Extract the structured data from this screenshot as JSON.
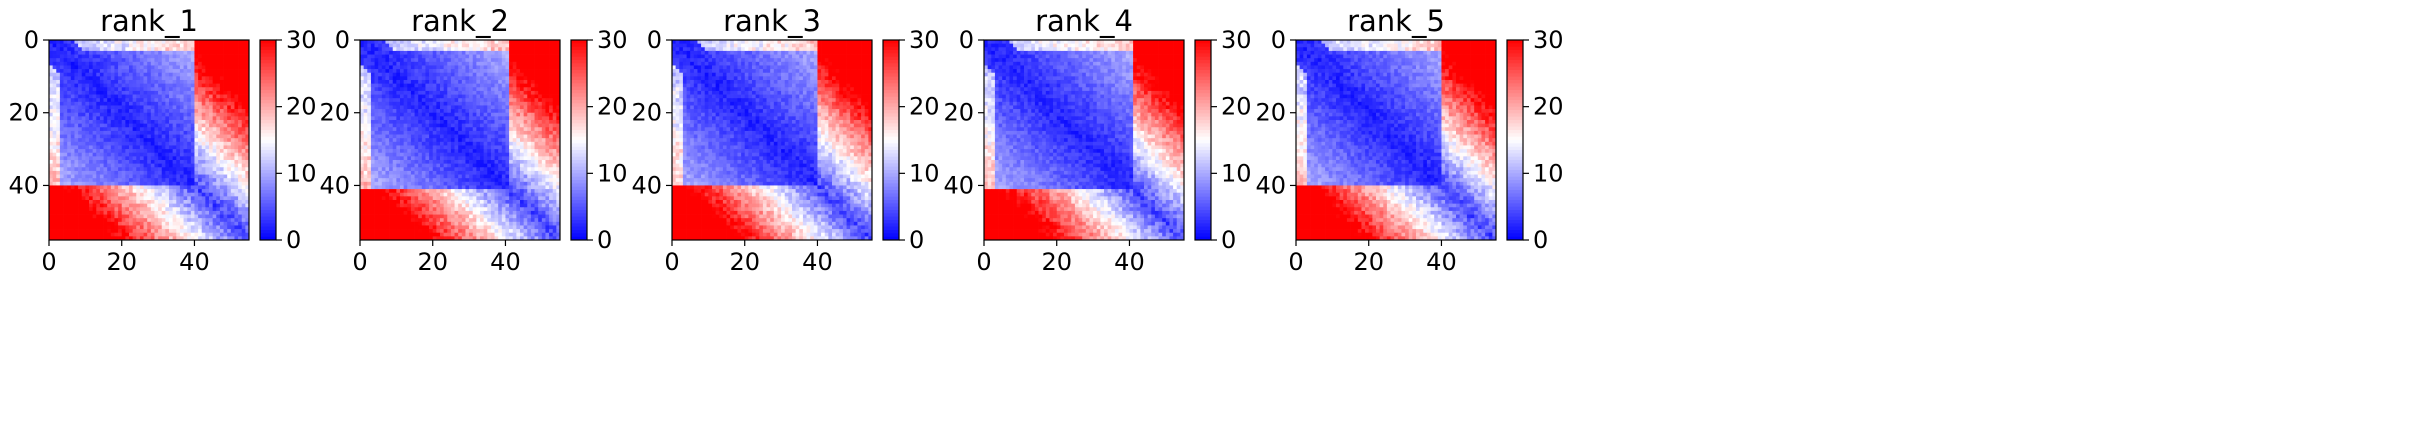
{
  "chart_data": [
    {
      "type": "heatmap",
      "title": "rank_1",
      "seed": 11,
      "n": 55,
      "xlim": [
        0,
        55
      ],
      "ylim": [
        55,
        0
      ],
      "x_ticks": [
        0,
        20,
        40
      ],
      "y_ticks": [
        0,
        20,
        40
      ],
      "colorbar": {
        "min": 0,
        "max": 30,
        "ticks": [
          0,
          10,
          20,
          30
        ]
      },
      "colormap": [
        "#0000ff",
        "#ffffff",
        "#ff0000"
      ],
      "block_end": 40
    },
    {
      "type": "heatmap",
      "title": "rank_2",
      "seed": 23,
      "n": 55,
      "xlim": [
        0,
        55
      ],
      "ylim": [
        55,
        0
      ],
      "x_ticks": [
        0,
        20,
        40
      ],
      "y_ticks": [
        0,
        20,
        40
      ],
      "colorbar": {
        "min": 0,
        "max": 30,
        "ticks": [
          0,
          10,
          20,
          30
        ]
      },
      "colormap": [
        "#0000ff",
        "#ffffff",
        "#ff0000"
      ],
      "block_end": 41
    },
    {
      "type": "heatmap",
      "title": "rank_3",
      "seed": 37,
      "n": 55,
      "xlim": [
        0,
        55
      ],
      "ylim": [
        55,
        0
      ],
      "x_ticks": [
        0,
        20,
        40
      ],
      "y_ticks": [
        0,
        20,
        40
      ],
      "colorbar": {
        "min": 0,
        "max": 30,
        "ticks": [
          0,
          10,
          20,
          30
        ]
      },
      "colormap": [
        "#0000ff",
        "#ffffff",
        "#ff0000"
      ],
      "block_end": 40
    },
    {
      "type": "heatmap",
      "title": "rank_4",
      "seed": 51,
      "n": 55,
      "xlim": [
        0,
        55
      ],
      "ylim": [
        55,
        0
      ],
      "x_ticks": [
        0,
        20,
        40
      ],
      "y_ticks": [
        0,
        20,
        40
      ],
      "colorbar": {
        "min": 0,
        "max": 30,
        "ticks": [
          0,
          10,
          20,
          30
        ]
      },
      "colormap": [
        "#0000ff",
        "#ffffff",
        "#ff0000"
      ],
      "block_end": 41
    },
    {
      "type": "heatmap",
      "title": "rank_5",
      "seed": 67,
      "n": 55,
      "xlim": [
        0,
        55
      ],
      "ylim": [
        55,
        0
      ],
      "x_ticks": [
        0,
        20,
        40
      ],
      "y_ticks": [
        0,
        20,
        40
      ],
      "colorbar": {
        "min": 0,
        "max": 30,
        "ticks": [
          0,
          10,
          20,
          30
        ]
      },
      "colormap": [
        "#0000ff",
        "#ffffff",
        "#ff0000"
      ],
      "block_end": 40
    }
  ]
}
